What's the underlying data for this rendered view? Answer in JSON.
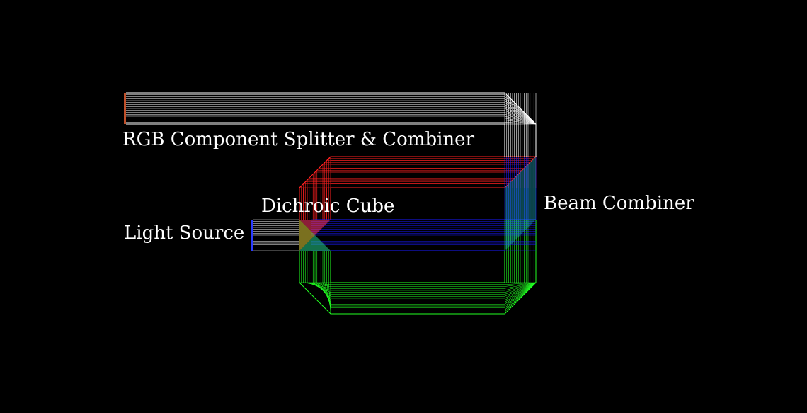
{
  "title": "RGB Component Splitter & Combiner",
  "labels": {
    "light_source": "Light Source",
    "dichroic_cube": "Dichroic Cube",
    "beam_combiner": "Beam Combiner"
  },
  "colors": {
    "background": "#000000",
    "white_beam": "#ffffff",
    "red_beam": "#ff2020",
    "green_beam": "#22ff22",
    "blue_beam": "#1a1aff",
    "source_marker": "#2a3cff",
    "output_marker": "#c0502a"
  },
  "beams": [
    {
      "name": "white-input-beam",
      "color": "white"
    },
    {
      "name": "red-beam",
      "color": "red"
    },
    {
      "name": "blue-beam",
      "color": "blue"
    },
    {
      "name": "green-beam",
      "color": "green"
    },
    {
      "name": "white-output-beam",
      "color": "white"
    }
  ]
}
